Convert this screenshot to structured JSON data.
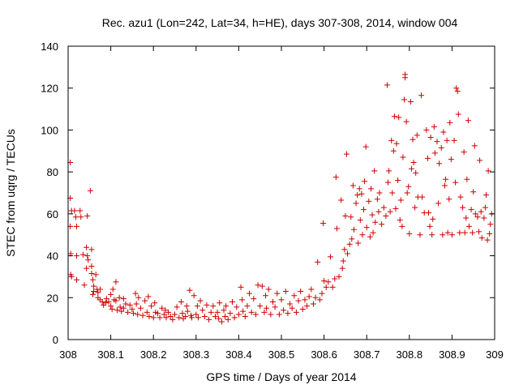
{
  "chart_data": {
    "type": "scatter",
    "title": "Rec. azu1 (Lon=242, Lat=34, h=HE), days 307-308, 2014, window 004",
    "xlabel": "GPS time / Days of year 2014",
    "ylabel": "STEC from uqrg / TECUs",
    "xlim": [
      308,
      309
    ],
    "ylim": [
      0,
      140
    ],
    "xticks": [
      "308",
      "308.1",
      "308.2",
      "308.3",
      "308.4",
      "308.5",
      "308.6",
      "308.7",
      "308.8",
      "308.9",
      "309"
    ],
    "yticks": [
      "0",
      "20",
      "40",
      "60",
      "80",
      "100",
      "120",
      "140"
    ],
    "marker": "+",
    "color": "#cc0000",
    "grid": false,
    "legend": "none",
    "points": [
      [
        308.005,
        84.5
      ],
      [
        308.005,
        67.5
      ],
      [
        308.008,
        61.5
      ],
      [
        308.005,
        54
      ],
      [
        308.006,
        41
      ],
      [
        308.006,
        31
      ],
      [
        308.008,
        30
      ],
      [
        308.015,
        61.5
      ],
      [
        308.018,
        58.5
      ],
      [
        308.02,
        54
      ],
      [
        308.02,
        40
      ],
      [
        308.02,
        28.5
      ],
      [
        308.028,
        61.5
      ],
      [
        308.03,
        58.5
      ],
      [
        308.035,
        40.5
      ],
      [
        308.038,
        26
      ],
      [
        308.043,
        44
      ],
      [
        308.045,
        40
      ],
      [
        308.047,
        38
      ],
      [
        308.045,
        59
      ],
      [
        308.043,
        34
      ],
      [
        308.052,
        71
      ],
      [
        308.055,
        43
      ],
      [
        308.055,
        35
      ],
      [
        308.055,
        31.5
      ],
      [
        308.058,
        28.5
      ],
      [
        308.06,
        25.5
      ],
      [
        308.06,
        23
      ],
      [
        308.058,
        21.5
      ],
      [
        308.065,
        31
      ],
      [
        308.068,
        24
      ],
      [
        308.07,
        22.5
      ],
      [
        308.07,
        20
      ],
      [
        308.075,
        24
      ],
      [
        308.075,
        19
      ],
      [
        308.08,
        18
      ],
      [
        308.083,
        16.5
      ],
      [
        308.088,
        17.5
      ],
      [
        308.09,
        19.5
      ],
      [
        308.095,
        18
      ],
      [
        308.1,
        21.5
      ],
      [
        308.1,
        16
      ],
      [
        308.103,
        14.5
      ],
      [
        308.105,
        24
      ],
      [
        308.108,
        19
      ],
      [
        308.112,
        27.5
      ],
      [
        308.112,
        18.5
      ],
      [
        308.115,
        14
      ],
      [
        308.12,
        20
      ],
      [
        308.122,
        15.5
      ],
      [
        308.125,
        13.5
      ],
      [
        308.13,
        19.5
      ],
      [
        308.13,
        15
      ],
      [
        308.135,
        17
      ],
      [
        308.14,
        13
      ],
      [
        308.145,
        16.5
      ],
      [
        308.15,
        14.5
      ],
      [
        308.153,
        12.5
      ],
      [
        308.158,
        22
      ],
      [
        308.16,
        17
      ],
      [
        308.163,
        12
      ],
      [
        308.165,
        20
      ],
      [
        308.17,
        15
      ],
      [
        308.175,
        11.5
      ],
      [
        308.18,
        18.5
      ],
      [
        308.185,
        13
      ],
      [
        308.188,
        20.5
      ],
      [
        308.19,
        11
      ],
      [
        308.195,
        16
      ],
      [
        308.2,
        10.5
      ],
      [
        308.203,
        17.5
      ],
      [
        308.205,
        13
      ],
      [
        308.21,
        12.5
      ],
      [
        308.215,
        10.5
      ],
      [
        308.22,
        15
      ],
      [
        308.225,
        12
      ],
      [
        308.228,
        14
      ],
      [
        308.23,
        10.5
      ],
      [
        308.235,
        13
      ],
      [
        308.24,
        11
      ],
      [
        308.245,
        9.5
      ],
      [
        308.25,
        12
      ],
      [
        308.255,
        15.5
      ],
      [
        308.26,
        10.5
      ],
      [
        308.265,
        18
      ],
      [
        308.268,
        12.5
      ],
      [
        308.27,
        10
      ],
      [
        308.275,
        11
      ],
      [
        308.278,
        16
      ],
      [
        308.28,
        13.5
      ],
      [
        308.285,
        23.5
      ],
      [
        308.288,
        11.5
      ],
      [
        308.29,
        10.5
      ],
      [
        308.295,
        21
      ],
      [
        308.3,
        12
      ],
      [
        308.303,
        16
      ],
      [
        308.305,
        10.5
      ],
      [
        308.31,
        18.5
      ],
      [
        308.315,
        14
      ],
      [
        308.32,
        11
      ],
      [
        308.325,
        16.5
      ],
      [
        308.33,
        9.5
      ],
      [
        308.335,
        13
      ],
      [
        308.34,
        16
      ],
      [
        308.345,
        11
      ],
      [
        308.35,
        13
      ],
      [
        308.353,
        10
      ],
      [
        308.355,
        17.5
      ],
      [
        308.36,
        8.5
      ],
      [
        308.365,
        14
      ],
      [
        308.368,
        11
      ],
      [
        308.37,
        16
      ],
      [
        308.375,
        9.5
      ],
      [
        308.38,
        12.5
      ],
      [
        308.385,
        18
      ],
      [
        308.39,
        10.5
      ],
      [
        308.395,
        15.5
      ],
      [
        308.4,
        12
      ],
      [
        308.405,
        25
      ],
      [
        308.408,
        19
      ],
      [
        308.41,
        13.5
      ],
      [
        308.415,
        11
      ],
      [
        308.42,
        16
      ],
      [
        308.425,
        22
      ],
      [
        308.43,
        13
      ],
      [
        308.435,
        19.5
      ],
      [
        308.44,
        12
      ],
      [
        308.445,
        26
      ],
      [
        308.45,
        16
      ],
      [
        308.455,
        25.5
      ],
      [
        308.46,
        13
      ],
      [
        308.463,
        21
      ],
      [
        308.465,
        15
      ],
      [
        308.47,
        24
      ],
      [
        308.475,
        12
      ],
      [
        308.48,
        18
      ],
      [
        308.485,
        15.5
      ],
      [
        308.49,
        22
      ],
      [
        308.495,
        12
      ],
      [
        308.5,
        19
      ],
      [
        308.505,
        14
      ],
      [
        308.51,
        23
      ],
      [
        308.515,
        12.5
      ],
      [
        308.52,
        17
      ],
      [
        308.525,
        15
      ],
      [
        308.53,
        21
      ],
      [
        308.535,
        13
      ],
      [
        308.54,
        18.5
      ],
      [
        308.545,
        23
      ],
      [
        308.55,
        14.5
      ],
      [
        308.555,
        19
      ],
      [
        308.56,
        16
      ],
      [
        308.565,
        20.5
      ],
      [
        308.57,
        24
      ],
      [
        308.575,
        17
      ],
      [
        308.58,
        20
      ],
      [
        308.585,
        37
      ],
      [
        308.59,
        19
      ],
      [
        308.595,
        22
      ],
      [
        308.598,
        55.5
      ],
      [
        308.6,
        28
      ],
      [
        308.605,
        25
      ],
      [
        308.61,
        27.5
      ],
      [
        308.615,
        39.5
      ],
      [
        308.62,
        25
      ],
      [
        308.625,
        29
      ],
      [
        308.628,
        77.5
      ],
      [
        308.63,
        53
      ],
      [
        308.635,
        30
      ],
      [
        308.64,
        66.5
      ],
      [
        308.643,
        34
      ],
      [
        308.645,
        37.5
      ],
      [
        308.648,
        43
      ],
      [
        308.65,
        59
      ],
      [
        308.653,
        88.5
      ],
      [
        308.655,
        41
      ],
      [
        308.66,
        45.5
      ],
      [
        308.663,
        58.5
      ],
      [
        308.665,
        48
      ],
      [
        308.668,
        73.5
      ],
      [
        308.67,
        52.5
      ],
      [
        308.675,
        65
      ],
      [
        308.678,
        69
      ],
      [
        308.68,
        46
      ],
      [
        308.683,
        72
      ],
      [
        308.685,
        57
      ],
      [
        308.688,
        69.5
      ],
      [
        308.69,
        50
      ],
      [
        308.693,
        62
      ],
      [
        308.695,
        75.5
      ],
      [
        308.698,
        92
      ],
      [
        308.7,
        53.5
      ],
      [
        308.705,
        66
      ],
      [
        308.708,
        49
      ],
      [
        308.71,
        72
      ],
      [
        308.713,
        59.5
      ],
      [
        308.715,
        51
      ],
      [
        308.718,
        80.5
      ],
      [
        308.72,
        56
      ],
      [
        308.725,
        67
      ],
      [
        308.728,
        61
      ],
      [
        308.73,
        70
      ],
      [
        308.735,
        55
      ],
      [
        308.74,
        63
      ],
      [
        308.745,
        59
      ],
      [
        308.748,
        121.5
      ],
      [
        308.75,
        75
      ],
      [
        308.752,
        80.5
      ],
      [
        308.755,
        61
      ],
      [
        308.758,
        95
      ],
      [
        308.76,
        70
      ],
      [
        308.763,
        90
      ],
      [
        308.765,
        106.5
      ],
      [
        308.768,
        62.5
      ],
      [
        308.77,
        93.5
      ],
      [
        308.773,
        76
      ],
      [
        308.775,
        106
      ],
      [
        308.778,
        57
      ],
      [
        308.78,
        66.5
      ],
      [
        308.783,
        54
      ],
      [
        308.785,
        87
      ],
      [
        308.788,
        114.5
      ],
      [
        308.79,
        126.5
      ],
      [
        308.79,
        125
      ],
      [
        308.793,
        104
      ],
      [
        308.795,
        70
      ],
      [
        308.798,
        73
      ],
      [
        308.8,
        50.5
      ],
      [
        308.803,
        113.5
      ],
      [
        308.805,
        81.5
      ],
      [
        308.808,
        95.5
      ],
      [
        308.81,
        84.5
      ],
      [
        308.813,
        63
      ],
      [
        308.815,
        79.5
      ],
      [
        308.818,
        97.5
      ],
      [
        308.82,
        68
      ],
      [
        308.825,
        50
      ],
      [
        308.828,
        116.5
      ],
      [
        308.83,
        68
      ],
      [
        308.835,
        60.5
      ],
      [
        308.84,
        100
      ],
      [
        308.843,
        86.5
      ],
      [
        308.845,
        60.5
      ],
      [
        308.848,
        54
      ],
      [
        308.85,
        96.5
      ],
      [
        308.853,
        50
      ],
      [
        308.855,
        57.5
      ],
      [
        308.858,
        101.5
      ],
      [
        308.86,
        89
      ],
      [
        308.865,
        94.5
      ],
      [
        308.868,
        65
      ],
      [
        308.87,
        84
      ],
      [
        308.875,
        91.5
      ],
      [
        308.878,
        50
      ],
      [
        308.88,
        99
      ],
      [
        308.883,
        73.5
      ],
      [
        308.885,
        76.5
      ],
      [
        308.888,
        95
      ],
      [
        308.89,
        51
      ],
      [
        308.893,
        67
      ],
      [
        308.895,
        103.5
      ],
      [
        308.898,
        86
      ],
      [
        308.9,
        50
      ],
      [
        308.905,
        95
      ],
      [
        308.908,
        75
      ],
      [
        308.91,
        120
      ],
      [
        308.913,
        118.5
      ],
      [
        308.915,
        107.5
      ],
      [
        308.918,
        51
      ],
      [
        308.92,
        68
      ],
      [
        308.925,
        63
      ],
      [
        308.928,
        89.5
      ],
      [
        308.93,
        51
      ],
      [
        308.933,
        58
      ],
      [
        308.935,
        76.5
      ],
      [
        308.938,
        104.5
      ],
      [
        308.94,
        54
      ],
      [
        308.945,
        62
      ],
      [
        308.948,
        51
      ],
      [
        308.95,
        70.5
      ],
      [
        308.953,
        92.5
      ],
      [
        308.955,
        60
      ],
      [
        308.96,
        58.5
      ],
      [
        308.963,
        51.5
      ],
      [
        308.965,
        85.5
      ],
      [
        308.968,
        61
      ],
      [
        308.97,
        48.5
      ],
      [
        308.975,
        58
      ],
      [
        308.978,
        63
      ],
      [
        308.98,
        69
      ],
      [
        308.983,
        47.5
      ],
      [
        308.985,
        80.5
      ],
      [
        308.988,
        50.5
      ],
      [
        308.99,
        55
      ],
      [
        308.993,
        60
      ]
    ]
  }
}
